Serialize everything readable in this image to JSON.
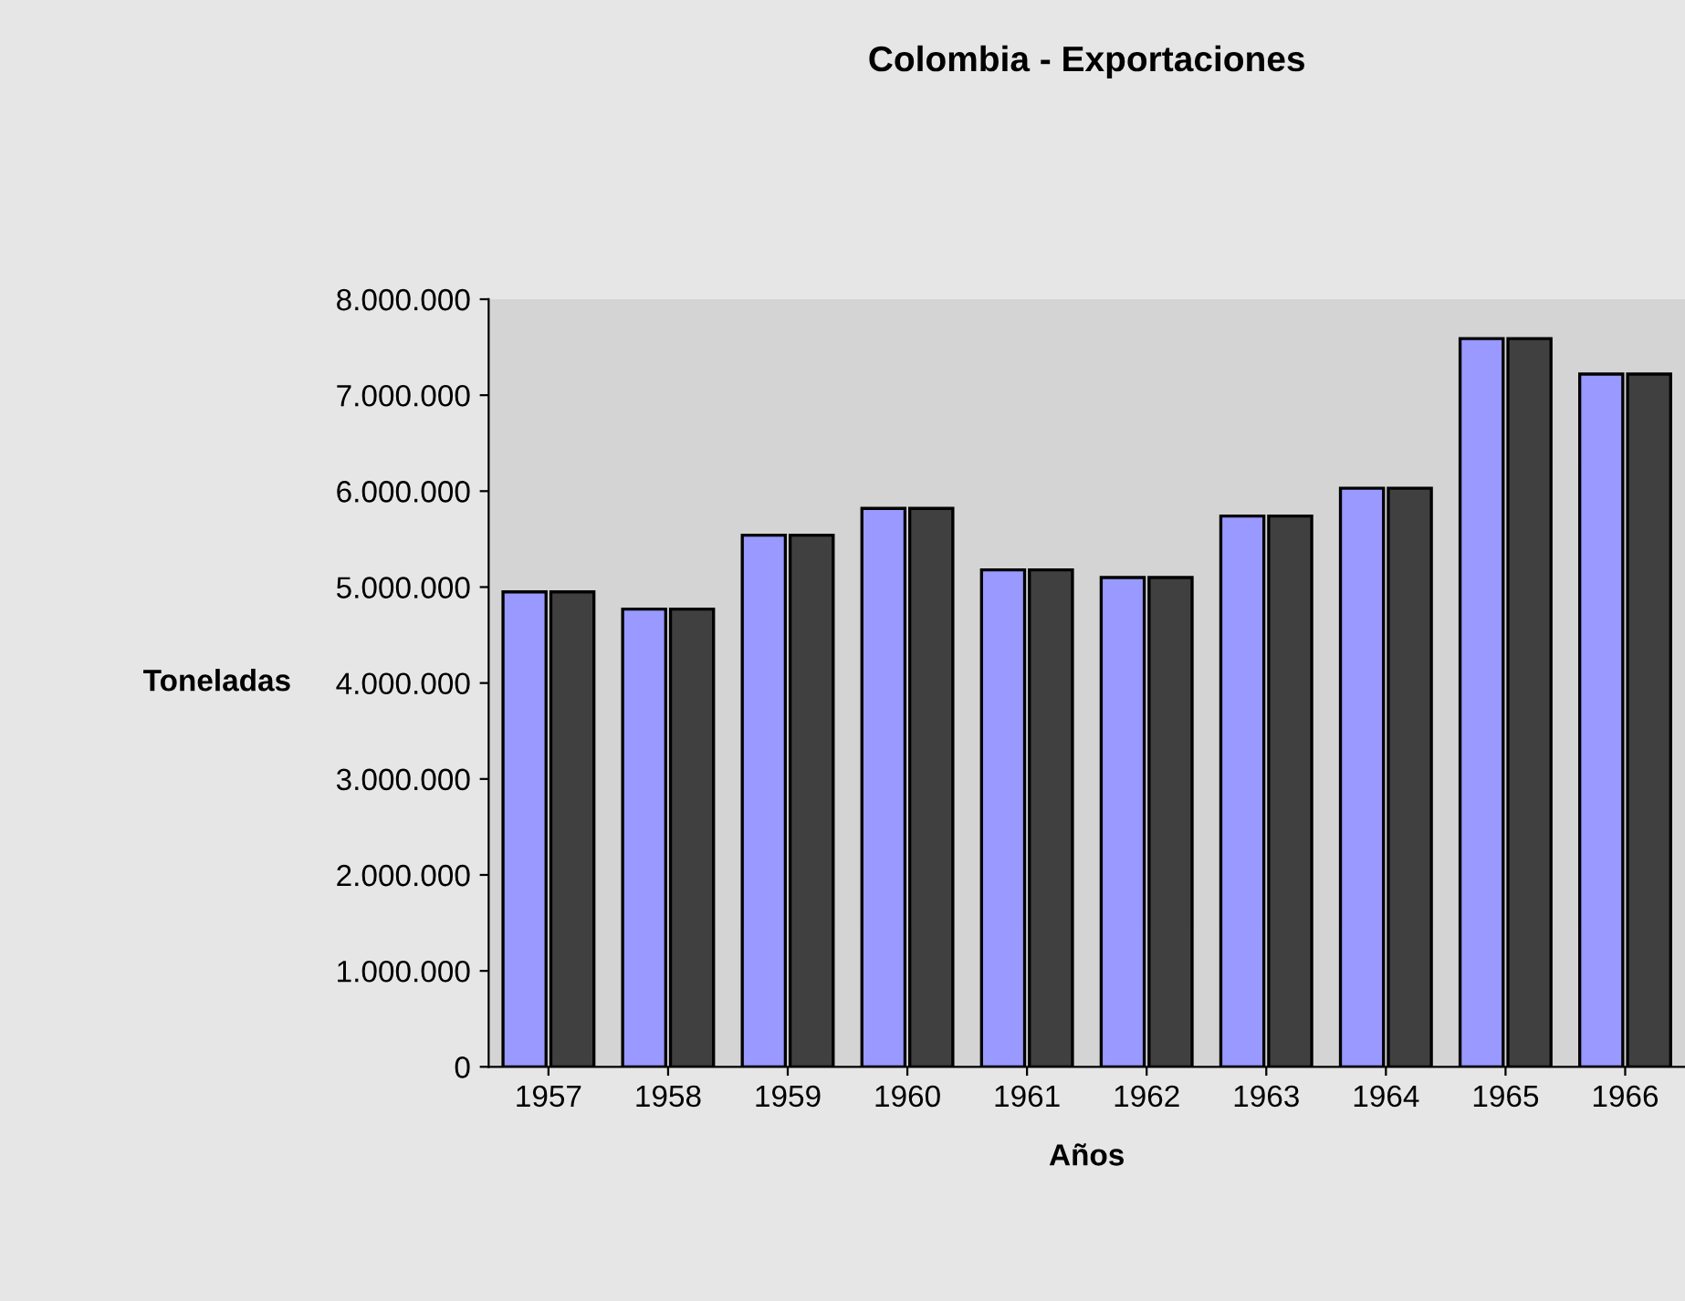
{
  "chart_data": {
    "type": "bar",
    "title": "Colombia - Exportaciones",
    "xlabel": "Años",
    "ylabel": "Toneladas",
    "categories": [
      "1957",
      "1958",
      "1959",
      "1960",
      "1961",
      "1962",
      "1963",
      "1964",
      "1965",
      "1966"
    ],
    "series": [
      {
        "color": "#9999ff",
        "values": [
          4950000,
          4770000,
          5540000,
          5820000,
          5180000,
          5100000,
          5740000,
          6030000,
          7590000,
          7220000
        ]
      },
      {
        "color": "#404040",
        "values": [
          4950000,
          4770000,
          5540000,
          5820000,
          5180000,
          5100000,
          5740000,
          6030000,
          7590000,
          7220000
        ]
      }
    ],
    "ylim": [
      0,
      8000000
    ],
    "yticks": [
      0,
      {
        "value": 1000000,
        "label": "1.000.000"
      },
      {
        "value": 2000000,
        "label": "2.000.000"
      },
      {
        "value": 3000000,
        "label": "3.000.000"
      },
      {
        "value": 4000000,
        "label": "4.000.000"
      },
      {
        "value": 5000000,
        "label": "5.000.000"
      },
      {
        "value": 6000000,
        "label": "6.000.000"
      },
      {
        "value": 7000000,
        "label": "7.000.000"
      },
      {
        "value": 8000000,
        "label": "8.000.000"
      }
    ],
    "grid": false,
    "legend": false
  }
}
